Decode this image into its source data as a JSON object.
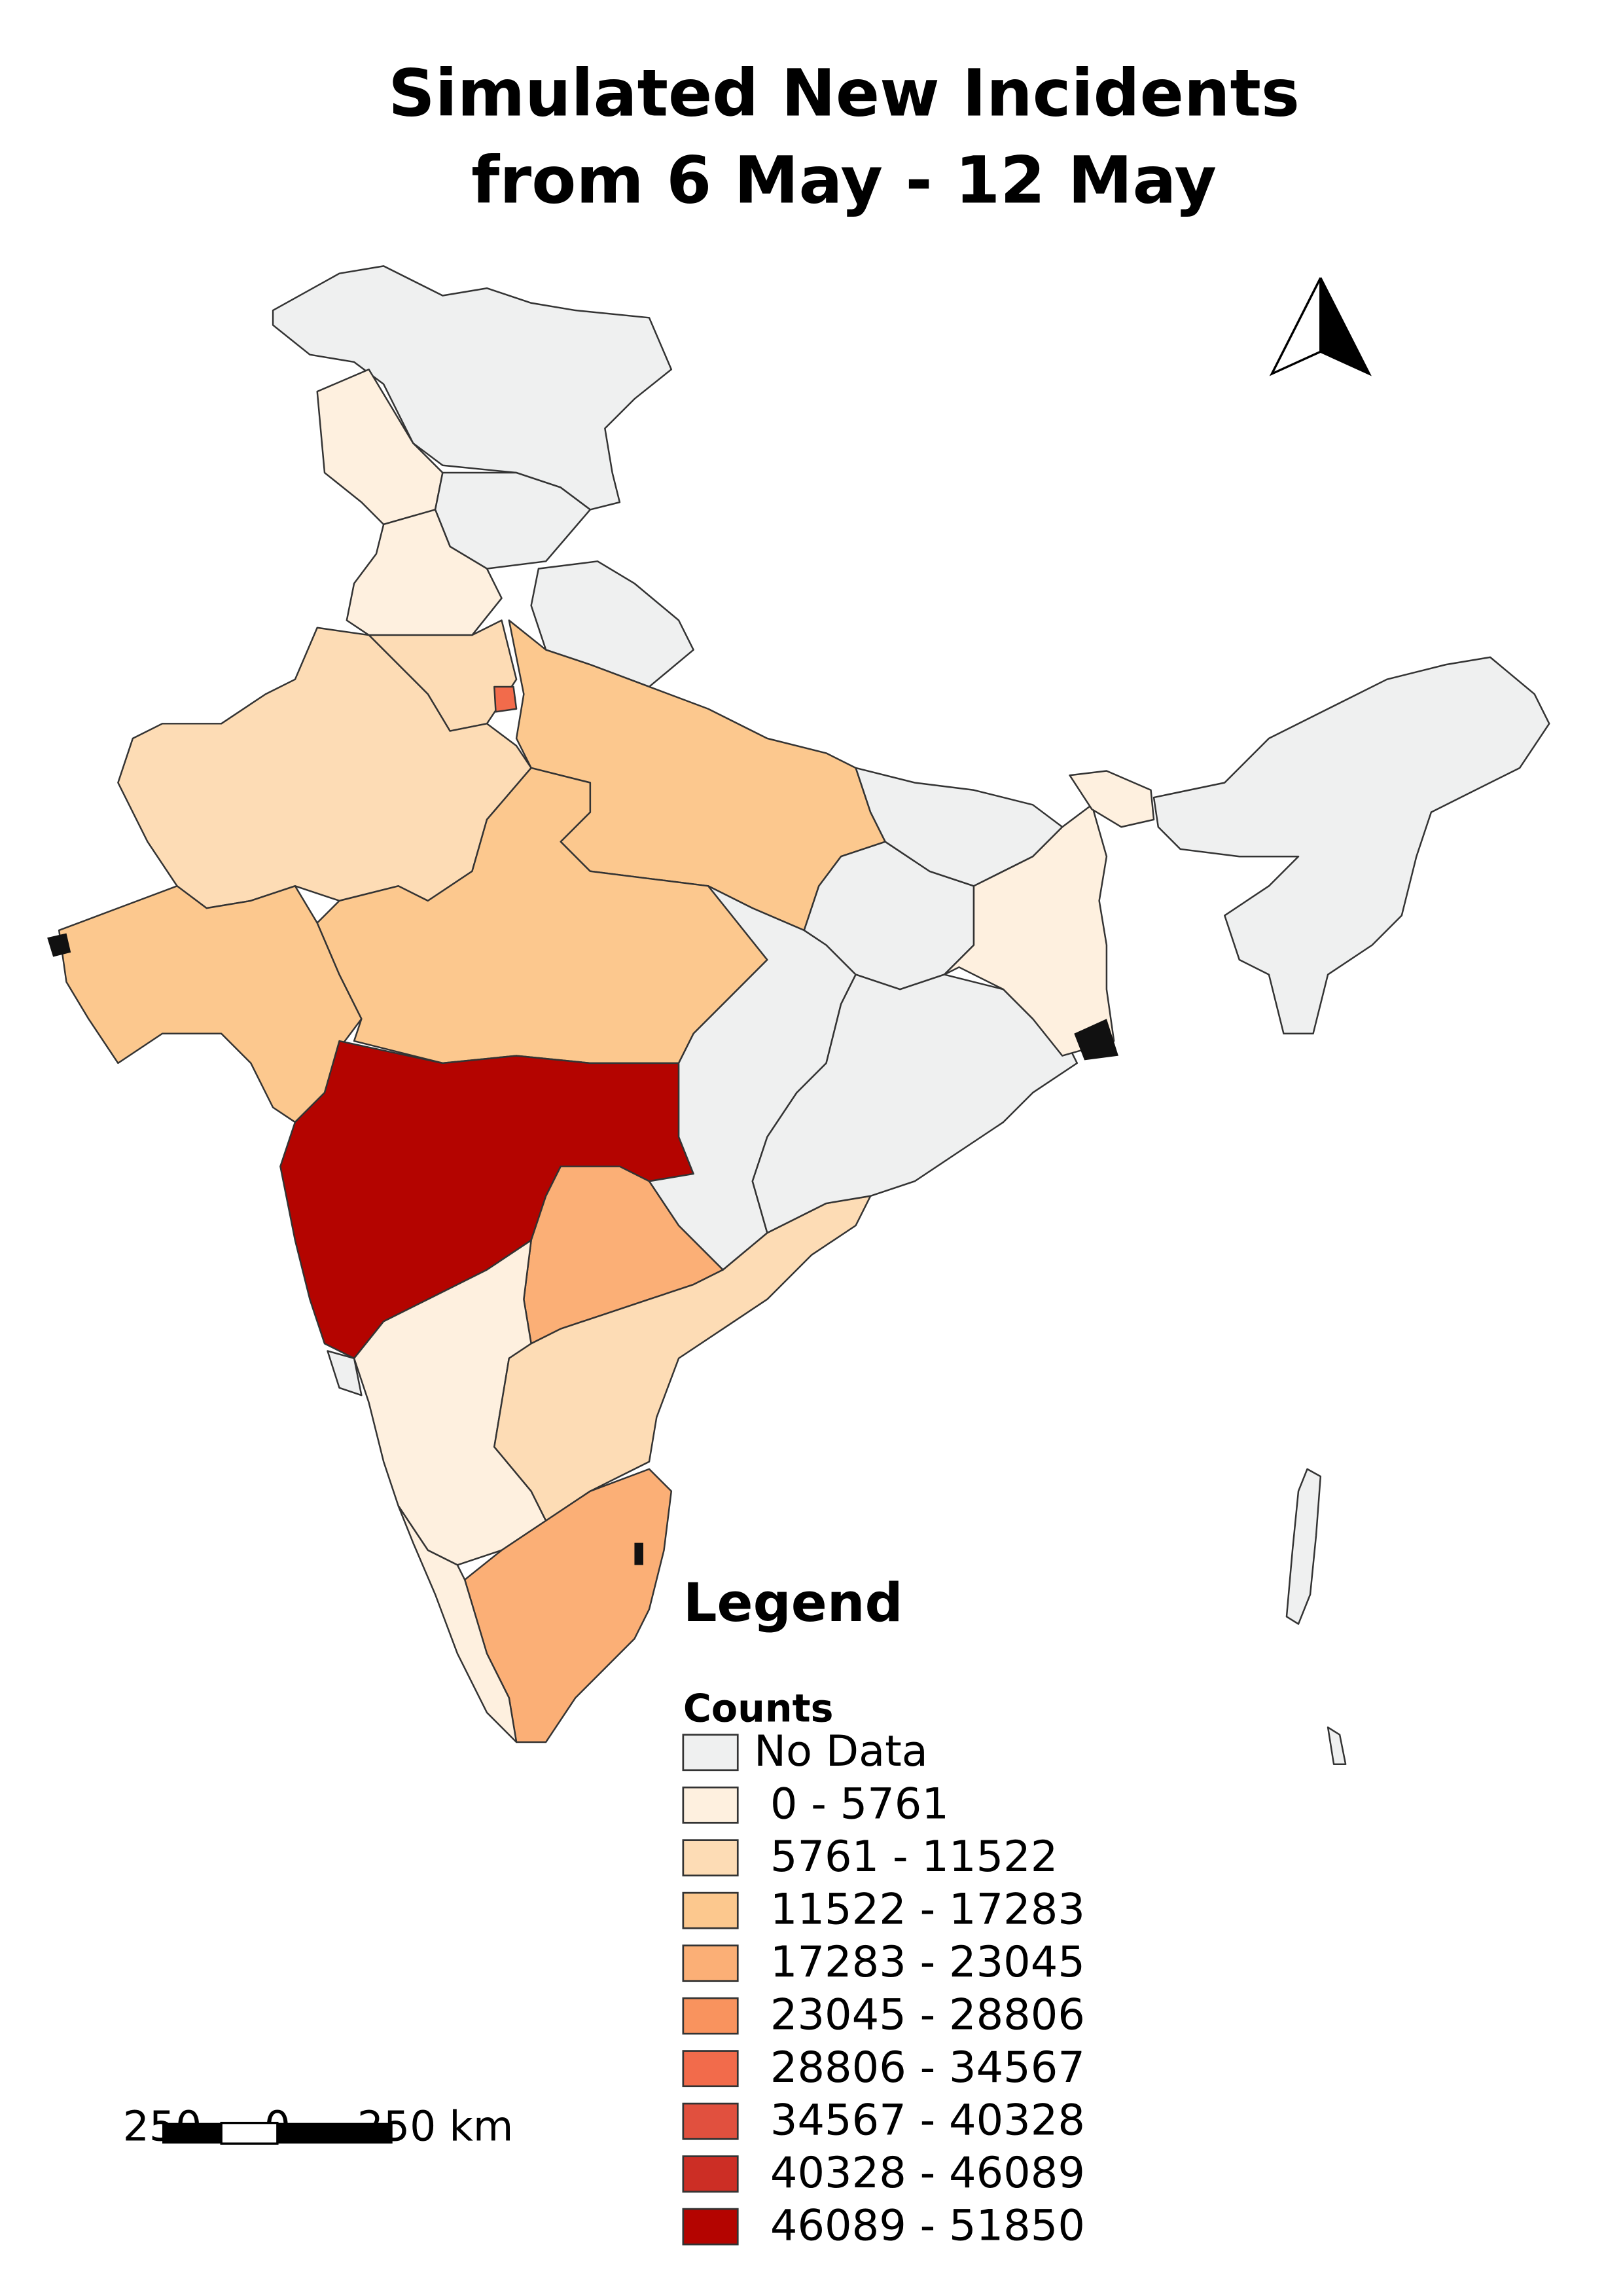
{
  "map": {
    "title": [
      "Simulated New Incidents",
      "from 6 May - 12 May"
    ],
    "legend": {
      "title": "Legend",
      "subtitle": "Counts",
      "items": [
        {
          "label": "No Data",
          "color": "#eff0f0"
        },
        {
          "label": "0 - 5761",
          "color": "#fef0df"
        },
        {
          "label": "5761 - 11522",
          "color": "#fddcb5"
        },
        {
          "label": "11522 - 17283",
          "color": "#fcc88e"
        },
        {
          "label": "17283 - 23045",
          "color": "#fbaf76"
        },
        {
          "label": "23045 - 28806",
          "color": "#f9935e"
        },
        {
          "label": "28806 - 34567",
          "color": "#f26b4b"
        },
        {
          "label": "34567 - 40328",
          "color": "#e1503e"
        },
        {
          "label": "40328 - 46089",
          "color": "#cc2e25"
        },
        {
          "label": "46089 - 51850",
          "color": "#b40400"
        }
      ]
    },
    "scale_bar": {
      "labels": [
        "250",
        "0",
        "250 km"
      ]
    }
  }
}
